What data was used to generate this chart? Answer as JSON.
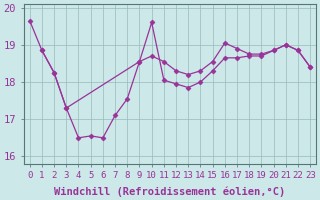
{
  "xlabel": "Windchill (Refroidissement éolien,°C)",
  "bg_color": "#cce8e8",
  "line_color": "#993399",
  "marker": "D",
  "marker_size": 2.5,
  "xlim": [
    -0.5,
    23.5
  ],
  "ylim": [
    15.8,
    20.1
  ],
  "yticks": [
    16,
    17,
    18,
    19,
    20
  ],
  "xticks": [
    0,
    1,
    2,
    3,
    4,
    5,
    6,
    7,
    8,
    9,
    10,
    11,
    12,
    13,
    14,
    15,
    16,
    17,
    18,
    19,
    20,
    21,
    22,
    23
  ],
  "line1_x": [
    0,
    1,
    2,
    3,
    4,
    5,
    6,
    7,
    8,
    9,
    10,
    11,
    12,
    13,
    14,
    15,
    16,
    17,
    18,
    19,
    20,
    21,
    22,
    23
  ],
  "line1_y": [
    19.65,
    18.85,
    18.25,
    17.3,
    16.5,
    16.55,
    16.5,
    17.1,
    17.55,
    18.55,
    19.6,
    18.05,
    17.95,
    17.85,
    18.0,
    18.3,
    18.65,
    18.65,
    18.7,
    18.7,
    18.85,
    19.0,
    18.85,
    18.4
  ],
  "line2_x": [
    1,
    2,
    3,
    9,
    10,
    11,
    12,
    13,
    14,
    15,
    16,
    17,
    18,
    19,
    20,
    21,
    22,
    23
  ],
  "line2_y": [
    18.85,
    18.25,
    17.3,
    18.55,
    18.7,
    18.55,
    18.3,
    18.2,
    18.3,
    18.55,
    19.05,
    18.9,
    18.75,
    18.75,
    18.85,
    19.0,
    18.85,
    18.4
  ],
  "grid_color": "#99bbbb",
  "tick_label_fontsize": 6.5,
  "xlabel_fontsize": 7.5
}
